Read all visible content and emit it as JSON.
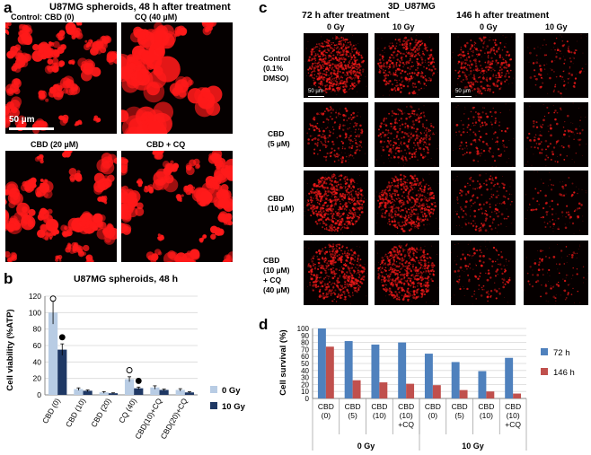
{
  "panel_a": {
    "letter": "a",
    "title": "U87MG spheroids, 48 h after treatment",
    "captions": [
      "Control: CBD (0)",
      "CQ (40 µM)",
      "CBD (20 µM)",
      "CBD + CQ"
    ],
    "scale_bar": "50 µm",
    "image_color": "#ff1a1a"
  },
  "panel_b": {
    "letter": "b",
    "title": "U87MG spheroids, 48 h",
    "ylabel": "Cell viability  (%ATP)"
  },
  "panel_c": {
    "letter": "c",
    "title": "3D_U87MG",
    "group_headers": [
      "72 h after treatment",
      "146 h after treatment"
    ],
    "dose_headers": [
      "0 Gy",
      "10 Gy",
      "0 Gy",
      "10 Gy"
    ],
    "row_labels": [
      "Control\n(0.1%\nDMSO)",
      "CBD\n(5 µM)",
      "CBD\n(10 µM)",
      "CBD\n(10 µM)\n+ CQ\n(40 µM)"
    ],
    "scale_bar": "50 µm"
  },
  "panel_d": {
    "letter": "d",
    "ylabel": "Cell survival (%)",
    "group_labels": [
      "0 Gy",
      "10 Gy"
    ]
  },
  "chart_data": [
    {
      "type": "bar",
      "title": "U87MG spheroids, 48 h",
      "xlabel": "",
      "ylabel": "Cell viability  (%ATP)",
      "categories": [
        "CBD (0)",
        "CBD (10)",
        "CBD (20)",
        "CQ (40)",
        "CBD(10)+CQ",
        "CBD(20)+CQ"
      ],
      "series": [
        {
          "name": "0 Gy",
          "values": [
            100,
            7,
            3,
            19,
            9,
            6
          ],
          "errors": [
            14,
            1.5,
            1,
            3,
            2,
            1.5
          ],
          "color": "#b8cce4"
        },
        {
          "name": "10 Gy",
          "values": [
            55,
            5,
            2,
            8,
            6,
            3
          ],
          "errors": [
            7,
            1,
            0.5,
            1.5,
            1,
            0.8
          ],
          "color": "#1f3864"
        }
      ],
      "markers": [
        {
          "category": "CBD (0)",
          "series": "0 Gy",
          "symbol": "open-circle",
          "value": 117
        },
        {
          "category": "CBD (0)",
          "series": "10 Gy",
          "symbol": "filled-circle",
          "value": 70
        },
        {
          "category": "CQ (40)",
          "series": "0 Gy",
          "symbol": "open-circle",
          "value": 30
        },
        {
          "category": "CQ (40)",
          "series": "10 Gy",
          "symbol": "filled-circle",
          "value": 17
        }
      ],
      "yticks": [
        0,
        20,
        40,
        60,
        80,
        100,
        120
      ],
      "ylim": [
        0,
        120
      ],
      "legend": "right"
    },
    {
      "type": "bar",
      "title": "",
      "xlabel": "",
      "ylabel": "Cell survival (%)",
      "categories": [
        "CBD (0)",
        "CBD (5)",
        "CBD (10)",
        "CBD (10) +CQ",
        "CBD (0)",
        "CBD (5)",
        "CBD (10)",
        "CBD (10) +CQ"
      ],
      "category_lines": [
        [
          "CBD",
          "(0)"
        ],
        [
          "CBD",
          "(5)"
        ],
        [
          "CBD",
          "(10)"
        ],
        [
          "CBD",
          "(10)",
          "+CQ"
        ],
        [
          "CBD",
          "(0)"
        ],
        [
          "CBD",
          "(5)"
        ],
        [
          "CBD",
          "(10)"
        ],
        [
          "CBD",
          "(10)",
          "+CQ"
        ]
      ],
      "groups": [
        "0 Gy",
        "0 Gy",
        "0 Gy",
        "0 Gy",
        "10 Gy",
        "10 Gy",
        "10 Gy",
        "10 Gy"
      ],
      "series": [
        {
          "name": "72 h",
          "values": [
            100,
            82,
            77,
            80,
            64,
            52,
            39,
            58
          ],
          "color": "#4f81bd"
        },
        {
          "name": "146 h",
          "values": [
            74,
            26,
            23,
            21,
            19,
            12,
            10,
            7
          ],
          "color": "#c0504d"
        }
      ],
      "yticks": [
        0,
        10,
        20,
        30,
        40,
        50,
        60,
        70,
        80,
        90,
        100
      ],
      "ylim": [
        0,
        100
      ],
      "legend": "right"
    }
  ]
}
